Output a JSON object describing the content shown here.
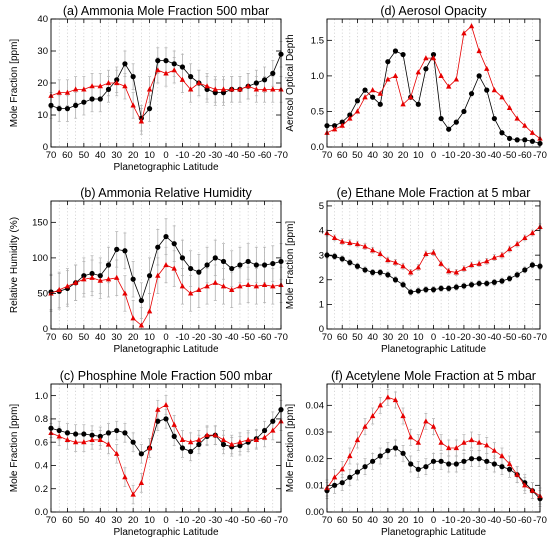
{
  "chart_data": [
    {
      "id": "a",
      "type": "scatter",
      "title": "(a) Ammonia Mole Fraction 500 mbar",
      "xlabel": "Planetographic Latitude",
      "ylabel": "Mole Fraction [ppm]",
      "xlim": [
        70,
        -70
      ],
      "ylim": [
        0,
        40
      ],
      "xticks": [
        70,
        60,
        50,
        40,
        30,
        20,
        10,
        0,
        -10,
        -20,
        -30,
        -40,
        -50,
        -60,
        -70
      ],
      "xticklabels": [
        "70",
        "60",
        "50",
        "40",
        "30",
        "20",
        "10",
        "0",
        "-10",
        "-20",
        "-30",
        "-40",
        "-50",
        "-60",
        "-70"
      ],
      "yticks": [
        0,
        10,
        20,
        30,
        40
      ],
      "yticklabels": [
        "0",
        "10",
        "20",
        "30",
        "40"
      ],
      "grid": "dotted-vertical",
      "x": [
        70,
        65,
        60,
        55,
        50,
        45,
        40,
        35,
        30,
        25,
        20,
        15,
        10,
        5,
        0,
        -5,
        -10,
        -15,
        -20,
        -25,
        -30,
        -35,
        -40,
        -45,
        -50,
        -55,
        -60,
        -65,
        -70
      ],
      "series": [
        {
          "color": "#000000",
          "marker": "circle",
          "values": [
            13,
            12,
            12,
            13,
            14,
            15,
            15,
            18,
            21,
            26,
            22,
            9,
            12,
            27,
            27,
            26,
            25,
            22,
            20,
            18,
            17,
            17,
            18,
            18,
            19,
            20,
            21,
            23,
            29
          ]
        },
        {
          "color": "#e60000",
          "marker": "triangle",
          "values": [
            16,
            17,
            17,
            18,
            18,
            19,
            19,
            20,
            20,
            19,
            13,
            8,
            18,
            24,
            23,
            24,
            21,
            18,
            20,
            19,
            18,
            18,
            18,
            18,
            19,
            18,
            18,
            18,
            18
          ]
        }
      ],
      "error_band": 4
    },
    {
      "id": "b",
      "type": "scatter",
      "title": "(b) Ammonia Relative Humidity",
      "xlabel": "Planetographic Latitude",
      "ylabel": "Relative Humidity (%)",
      "xlim": [
        70,
        -70
      ],
      "ylim": [
        0,
        180
      ],
      "xticks": [
        70,
        60,
        50,
        40,
        30,
        20,
        10,
        0,
        -10,
        -20,
        -30,
        -40,
        -50,
        -60,
        -70
      ],
      "xticklabels": [
        "70",
        "60",
        "50",
        "40",
        "30",
        "20",
        "10",
        "0",
        "-10",
        "-20",
        "-30",
        "-40",
        "-50",
        "-60",
        "-70"
      ],
      "yticks": [
        0,
        50,
        100,
        150
      ],
      "yticklabels": [
        "0",
        "50",
        "100",
        "150"
      ],
      "grid": "dotted-vertical",
      "x": [
        70,
        65,
        60,
        55,
        50,
        45,
        40,
        35,
        30,
        25,
        20,
        15,
        10,
        5,
        0,
        -5,
        -10,
        -15,
        -20,
        -25,
        -30,
        -35,
        -40,
        -45,
        -50,
        -55,
        -60,
        -65,
        -70
      ],
      "series": [
        {
          "color": "#000000",
          "marker": "circle",
          "values": [
            52,
            53,
            57,
            65,
            75,
            78,
            75,
            90,
            112,
            110,
            70,
            40,
            75,
            115,
            130,
            120,
            100,
            85,
            80,
            90,
            100,
            95,
            85,
            90,
            95,
            90,
            90,
            92,
            95
          ]
        },
        {
          "color": "#e60000",
          "marker": "triangle",
          "values": [
            50,
            55,
            60,
            65,
            70,
            72,
            68,
            70,
            72,
            50,
            15,
            5,
            25,
            75,
            90,
            85,
            60,
            50,
            55,
            60,
            65,
            60,
            55,
            60,
            62,
            60,
            62,
            60,
            62
          ]
        }
      ],
      "error_band": 25
    },
    {
      "id": "c",
      "type": "scatter",
      "title": "(c) Phosphine Mole Fraction 500 mbar",
      "xlabel": "Planetographic Latitude",
      "ylabel": "Mole Fraction [ppm]",
      "xlim": [
        70,
        -70
      ],
      "ylim": [
        0,
        1.1
      ],
      "xticks": [
        70,
        60,
        50,
        40,
        30,
        20,
        10,
        0,
        -10,
        -20,
        -30,
        -40,
        -50,
        -60,
        -70
      ],
      "xticklabels": [
        "70",
        "60",
        "50",
        "40",
        "30",
        "20",
        "10",
        "0",
        "-10",
        "-20",
        "-30",
        "-40",
        "-50",
        "-60",
        "-70"
      ],
      "yticks": [
        0,
        0.2,
        0.4,
        0.6,
        0.8,
        1.0
      ],
      "yticklabels": [
        "0.0",
        "0.2",
        "0.4",
        "0.6",
        "0.8",
        "1.0"
      ],
      "grid": "dotted-vertical",
      "x": [
        70,
        65,
        60,
        55,
        50,
        45,
        40,
        35,
        30,
        25,
        20,
        15,
        10,
        5,
        0,
        -5,
        -10,
        -15,
        -20,
        -25,
        -30,
        -35,
        -40,
        -45,
        -50,
        -55,
        -60,
        -65,
        -70
      ],
      "series": [
        {
          "color": "#000000",
          "marker": "circle",
          "values": [
            0.72,
            0.7,
            0.68,
            0.67,
            0.67,
            0.66,
            0.65,
            0.68,
            0.7,
            0.68,
            0.6,
            0.5,
            0.55,
            0.78,
            0.8,
            0.65,
            0.55,
            0.52,
            0.58,
            0.65,
            0.66,
            0.58,
            0.56,
            0.57,
            0.6,
            0.63,
            0.7,
            0.78,
            0.88
          ]
        },
        {
          "color": "#e60000",
          "marker": "triangle",
          "values": [
            0.68,
            0.65,
            0.62,
            0.6,
            0.6,
            0.62,
            0.62,
            0.58,
            0.5,
            0.3,
            0.15,
            0.25,
            0.55,
            0.88,
            0.92,
            0.75,
            0.62,
            0.6,
            0.62,
            0.66,
            0.66,
            0.62,
            0.58,
            0.6,
            0.62,
            0.62,
            0.64,
            0.7,
            0.78
          ]
        }
      ],
      "error_band": 0.08
    },
    {
      "id": "d",
      "type": "scatter",
      "title": "(d) Aerosol Opacity",
      "xlabel": "",
      "ylabel": "Aerosol Optical Depth",
      "xlim": [
        70,
        -70
      ],
      "ylim": [
        0,
        1.8
      ],
      "xticks": [
        70,
        60,
        50,
        40,
        30,
        20,
        10,
        0,
        -10,
        -20,
        -30,
        -40,
        -50,
        -60,
        -70
      ],
      "xticklabels": [
        "70",
        "60",
        "50",
        "40",
        "30",
        "20",
        "10",
        "0",
        "-10",
        "-20",
        "-30",
        "-40",
        "-50",
        "-60",
        "-70"
      ],
      "yticks": [
        0,
        0.5,
        1.0,
        1.5
      ],
      "yticklabels": [
        "0.0",
        "0.5",
        "1.0",
        "1.5"
      ],
      "grid": "dotted-vertical",
      "x": [
        70,
        65,
        60,
        55,
        50,
        45,
        40,
        35,
        30,
        25,
        20,
        15,
        10,
        5,
        0,
        -5,
        -10,
        -15,
        -20,
        -25,
        -30,
        -35,
        -40,
        -45,
        -50,
        -55,
        -60,
        -65,
        -70
      ],
      "series": [
        {
          "color": "#000000",
          "marker": "circle",
          "values": [
            0.3,
            0.3,
            0.35,
            0.45,
            0.65,
            0.8,
            0.7,
            0.6,
            1.2,
            1.35,
            1.3,
            0.7,
            0.6,
            1.1,
            1.3,
            0.4,
            0.25,
            0.35,
            0.5,
            0.75,
            1.0,
            0.8,
            0.4,
            0.2,
            0.12,
            0.1,
            0.1,
            0.08,
            0.05
          ]
        },
        {
          "color": "#e60000",
          "marker": "triangle",
          "values": [
            0.2,
            0.25,
            0.3,
            0.4,
            0.5,
            0.7,
            0.8,
            0.75,
            0.95,
            1.0,
            0.6,
            0.7,
            1.05,
            1.25,
            1.25,
            1.0,
            0.85,
            0.95,
            1.6,
            1.7,
            1.35,
            1.1,
            0.8,
            0.7,
            0.55,
            0.4,
            0.3,
            0.2,
            0.12
          ]
        }
      ],
      "error_band": 0
    },
    {
      "id": "e",
      "type": "scatter",
      "title": "(e) Ethane Mole Fraction at 5 mbar",
      "xlabel": "Planetographic Latitude",
      "ylabel": "Mole Fraction [ppm]",
      "xlim": [
        70,
        -70
      ],
      "ylim": [
        0,
        5.2
      ],
      "xticks": [
        70,
        60,
        50,
        40,
        30,
        20,
        10,
        0,
        -10,
        -20,
        -30,
        -40,
        -50,
        -60,
        -70
      ],
      "xticklabels": [
        "70",
        "60",
        "50",
        "40",
        "30",
        "20",
        "10",
        "0",
        "-10",
        "-20",
        "-30",
        "-40",
        "-50",
        "-60",
        "-70"
      ],
      "yticks": [
        0,
        1,
        2,
        3,
        4,
        5
      ],
      "yticklabels": [
        "0",
        "1",
        "2",
        "3",
        "4",
        "5"
      ],
      "grid": "dotted-vertical",
      "x": [
        70,
        65,
        60,
        55,
        50,
        45,
        40,
        35,
        30,
        25,
        20,
        15,
        10,
        5,
        0,
        -5,
        -10,
        -15,
        -20,
        -25,
        -30,
        -35,
        -40,
        -45,
        -50,
        -55,
        -60,
        -65,
        -70
      ],
      "series": [
        {
          "color": "#000000",
          "marker": "circle",
          "values": [
            3.0,
            2.95,
            2.85,
            2.7,
            2.55,
            2.4,
            2.3,
            2.3,
            2.2,
            2.0,
            1.8,
            1.5,
            1.55,
            1.6,
            1.6,
            1.65,
            1.65,
            1.7,
            1.75,
            1.8,
            1.85,
            1.85,
            1.9,
            1.95,
            2.05,
            2.2,
            2.4,
            2.6,
            2.55
          ]
        },
        {
          "color": "#e60000",
          "marker": "triangle",
          "values": [
            3.9,
            3.7,
            3.55,
            3.5,
            3.45,
            3.35,
            3.2,
            3.05,
            2.8,
            2.7,
            2.55,
            2.3,
            2.5,
            3.05,
            3.1,
            2.65,
            2.35,
            2.3,
            2.45,
            2.6,
            2.65,
            2.75,
            2.9,
            3.0,
            3.25,
            3.45,
            3.7,
            3.9,
            4.15
          ]
        }
      ],
      "error_band": 0.12
    },
    {
      "id": "f",
      "type": "scatter",
      "title": "(f) Acetylene Mole Fraction at 5 mbar",
      "xlabel": "Planetographic Latitude",
      "ylabel": "Mole Fraction [ppm]",
      "xlim": [
        70,
        -70
      ],
      "ylim": [
        0,
        0.048
      ],
      "xticks": [
        70,
        60,
        50,
        40,
        30,
        20,
        10,
        0,
        -10,
        -20,
        -30,
        -40,
        -50,
        -60,
        -70
      ],
      "xticklabels": [
        "70",
        "60",
        "50",
        "40",
        "30",
        "20",
        "10",
        "0",
        "-10",
        "-20",
        "-30",
        "-40",
        "-50",
        "-60",
        "-70"
      ],
      "yticks": [
        0,
        0.01,
        0.02,
        0.03,
        0.04
      ],
      "yticklabels": [
        "0.00",
        "0.01",
        "0.02",
        "0.03",
        "0.04"
      ],
      "grid": "dotted-vertical",
      "x": [
        70,
        65,
        60,
        55,
        50,
        45,
        40,
        35,
        30,
        25,
        20,
        15,
        10,
        5,
        0,
        -5,
        -10,
        -15,
        -20,
        -25,
        -30,
        -35,
        -40,
        -45,
        -50,
        -55,
        -60,
        -65,
        -70
      ],
      "series": [
        {
          "color": "#000000",
          "marker": "circle",
          "values": [
            0.008,
            0.01,
            0.011,
            0.013,
            0.015,
            0.017,
            0.019,
            0.021,
            0.023,
            0.024,
            0.022,
            0.018,
            0.016,
            0.017,
            0.019,
            0.019,
            0.018,
            0.018,
            0.019,
            0.02,
            0.02,
            0.019,
            0.018,
            0.017,
            0.016,
            0.014,
            0.011,
            0.008,
            0.005
          ]
        },
        {
          "color": "#e60000",
          "marker": "triangle",
          "values": [
            0.009,
            0.013,
            0.016,
            0.021,
            0.027,
            0.032,
            0.036,
            0.04,
            0.043,
            0.042,
            0.036,
            0.028,
            0.026,
            0.034,
            0.032,
            0.026,
            0.024,
            0.024,
            0.026,
            0.027,
            0.026,
            0.025,
            0.023,
            0.021,
            0.018,
            0.014,
            0.01,
            0.008,
            0.006
          ]
        }
      ],
      "error_band": 0.003
    }
  ]
}
